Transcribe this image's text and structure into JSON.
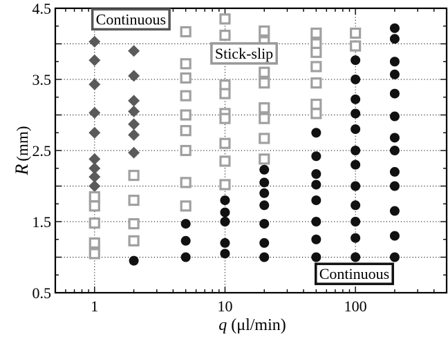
{
  "chart_data": {
    "type": "scatter",
    "x_scale": "log",
    "xlim": [
      0.5,
      500
    ],
    "ylim": [
      0.5,
      4.5
    ],
    "grid": true,
    "xlabel": {
      "symbol": "q",
      "unit": "(μl/min)"
    },
    "ylabel": {
      "symbol": "R",
      "unit": "(mm)"
    },
    "x_ticks": [
      {
        "value": 1,
        "label": "1"
      },
      {
        "value": 10,
        "label": "10"
      },
      {
        "value": 100,
        "label": "100"
      }
    ],
    "y_ticks": [
      {
        "value": 0.5,
        "label": "0.5"
      },
      {
        "value": 1.5,
        "label": "1.5"
      },
      {
        "value": 2.5,
        "label": "2.5"
      },
      {
        "value": 3.5,
        "label": "3.5"
      },
      {
        "value": 4.5,
        "label": "4.5"
      }
    ],
    "y_grid": [
      0.5,
      1.0,
      1.5,
      2.0,
      2.5,
      3.0,
      3.5,
      4.0,
      4.5
    ],
    "annotations": [
      {
        "text": "Continuous",
        "x": 1.9,
        "y": 4.35,
        "color": "#555555"
      },
      {
        "text": "Stick-slip",
        "x": 14,
        "y": 3.87,
        "color": "#999999"
      },
      {
        "text": "Continuous",
        "x": 98,
        "y": 0.77,
        "color": "#111111"
      }
    ],
    "series": [
      {
        "marker": "diamond",
        "color": "#5a5a5a",
        "points": [
          [
            1,
            4.03
          ],
          [
            1,
            3.77
          ],
          [
            1,
            3.43
          ],
          [
            1,
            3.03
          ],
          [
            1,
            2.75
          ],
          [
            1,
            2.38
          ],
          [
            1,
            2.25
          ],
          [
            1,
            2.13
          ],
          [
            1,
            2.0
          ],
          [
            2,
            3.9
          ],
          [
            2,
            3.55
          ],
          [
            2,
            3.2
          ],
          [
            2,
            3.05
          ],
          [
            2,
            2.87
          ],
          [
            2,
            2.72
          ],
          [
            2,
            2.47
          ]
        ]
      },
      {
        "marker": "square-open",
        "color": "#a0a0a0",
        "points": [
          [
            1,
            1.85
          ],
          [
            1,
            1.72
          ],
          [
            1,
            1.48
          ],
          [
            1,
            1.2
          ],
          [
            1,
            1.05
          ],
          [
            2,
            2.15
          ],
          [
            2,
            1.8
          ],
          [
            2,
            1.47
          ],
          [
            2,
            1.23
          ],
          [
            5,
            4.17
          ],
          [
            5,
            3.72
          ],
          [
            5,
            3.52
          ],
          [
            5,
            3.27
          ],
          [
            5,
            3.0
          ],
          [
            5,
            2.78
          ],
          [
            5,
            2.5
          ],
          [
            5,
            2.05
          ],
          [
            5,
            1.72
          ],
          [
            10,
            4.35
          ],
          [
            10,
            4.12
          ],
          [
            10,
            3.92
          ],
          [
            10,
            3.42
          ],
          [
            10,
            3.3
          ],
          [
            10,
            3.02
          ],
          [
            10,
            2.95
          ],
          [
            10,
            2.6
          ],
          [
            10,
            2.35
          ],
          [
            10,
            2.02
          ],
          [
            20,
            4.18
          ],
          [
            20,
            4.03
          ],
          [
            20,
            3.6
          ],
          [
            20,
            3.45
          ],
          [
            20,
            3.1
          ],
          [
            20,
            2.95
          ],
          [
            20,
            2.67
          ],
          [
            20,
            2.38
          ],
          [
            50,
            4.15
          ],
          [
            50,
            4.0
          ],
          [
            50,
            3.88
          ],
          [
            50,
            3.68
          ],
          [
            50,
            3.45
          ],
          [
            50,
            3.15
          ],
          [
            50,
            3.02
          ],
          [
            100,
            4.15
          ],
          [
            100,
            3.97
          ]
        ]
      },
      {
        "marker": "circle-filled",
        "color": "#111111",
        "points": [
          [
            2,
            0.95
          ],
          [
            5,
            1.47
          ],
          [
            5,
            1.23
          ],
          [
            5,
            1.0
          ],
          [
            10,
            1.8
          ],
          [
            10,
            1.63
          ],
          [
            10,
            1.5
          ],
          [
            10,
            1.2
          ],
          [
            10,
            1.05
          ],
          [
            20,
            2.23
          ],
          [
            20,
            2.05
          ],
          [
            20,
            1.9
          ],
          [
            20,
            1.73
          ],
          [
            20,
            1.47
          ],
          [
            20,
            1.2
          ],
          [
            20,
            1.0
          ],
          [
            50,
            2.75
          ],
          [
            50,
            2.42
          ],
          [
            50,
            2.17
          ],
          [
            50,
            2.02
          ],
          [
            50,
            1.8
          ],
          [
            50,
            1.5
          ],
          [
            50,
            1.25
          ],
          [
            50,
            1.0
          ],
          [
            100,
            3.77
          ],
          [
            100,
            3.5
          ],
          [
            100,
            3.22
          ],
          [
            100,
            3.02
          ],
          [
            100,
            2.8
          ],
          [
            100,
            2.5
          ],
          [
            100,
            2.3
          ],
          [
            100,
            2.0
          ],
          [
            100,
            1.73
          ],
          [
            100,
            1.5
          ],
          [
            100,
            1.27
          ],
          [
            100,
            1.0
          ],
          [
            200,
            4.22
          ],
          [
            200,
            4.07
          ],
          [
            200,
            3.75
          ],
          [
            200,
            3.57
          ],
          [
            200,
            3.3
          ],
          [
            200,
            2.98
          ],
          [
            200,
            2.68
          ],
          [
            200,
            2.5
          ],
          [
            200,
            2.2
          ],
          [
            200,
            2.0
          ],
          [
            200,
            1.65
          ],
          [
            200,
            1.3
          ],
          [
            200,
            1.0
          ]
        ]
      }
    ]
  }
}
